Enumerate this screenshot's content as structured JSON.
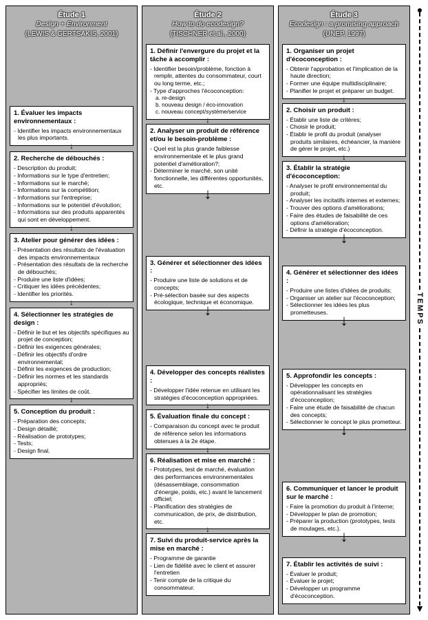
{
  "timeline_label": "TEMPS",
  "columns": [
    {
      "header": {
        "title": "Étude 1",
        "subtitle": "Design + Environment",
        "credit": "(LEWIS & GERTSAKIS, 2001)"
      },
      "top_gap": 90,
      "steps": [
        {
          "title": "1. Évaluer les impacts environnementaux :",
          "items": [
            "Identifier les impacts environnementaux les plus importants."
          ],
          "gap_after": 8
        },
        {
          "title": "2. Recherche de débouchés :",
          "items": [
            "Description du produit;",
            "Informations sur le type d'entretien;",
            "Informations sur le marché;",
            "Informations sur la compétition;",
            "Informations sur l'entreprise;",
            "Informations sur le potentiel d'évolution;",
            "Informations sur des produits apparentés qui sont en développement."
          ],
          "gap_after": 8
        },
        {
          "title": "3. Atelier pour générer des idées :",
          "items": [
            "Présentation des résultats de l'évaluation des impacts environnementaux",
            "Présentation des résultats de la recherche de débouchés;",
            "Produire une liste d'idées;",
            "Critiquer les idées précédentes;",
            "Identifier les priorités."
          ],
          "gap_after": 8
        },
        {
          "title": "4. Sélectionner les stratégies de design :",
          "items": [
            "Définir le but et les objectifs spécifiques au projet de conception;",
            "Définir les exigences générales;",
            "Définir les objectifs d'ordre environnemental;",
            "Définir les exigences de production;",
            "Définir les normes et les standards appropriés;",
            "Spécifier les limites de coût."
          ],
          "gap_after": 8
        },
        {
          "title": "5. Conception du produit :",
          "items": [
            "Préparation des concepts;",
            "Design détaillé;",
            "Réalisation de prototypes;",
            "Tests;",
            "Design final."
          ],
          "last": true,
          "gap_after": 180
        }
      ]
    },
    {
      "header": {
        "title": "Étude 2",
        "subtitle": "How to do ecodesign?",
        "credit": "(TISCHNER et al., 2000)"
      },
      "top_gap": 0,
      "steps": [
        {
          "title": "1. Définir l'envergure du projet et la tâche à accomplir :",
          "items": [
            "Identifier besoin/problème, fonction à remplir, attentes du consommateur, court ou long terme, etc.;",
            "Type d'approches l'écoconception:"
          ],
          "subitems": [
            "a. re-design",
            "b. nouveau design / éco-innovation",
            "c. nouveau concept/système/service"
          ],
          "gap_after": 6
        },
        {
          "title": "2. Analyser un produit de référence et/ou le besoin-problème :",
          "items": [
            "Quel est la plus grande faiblesse environnementale et le plus grand potentiel d'amélioration?;",
            "Déterminer le marché, son unité fonctionnelle, les différentes opportunités, etc."
          ],
          "gap_after": 90
        },
        {
          "title": "3. Générer et sélectionner des idées :",
          "items": [
            "Produire une liste de solutions et de concepts;",
            "Pré-sélection basée sur des aspects écologique, technique et économique."
          ],
          "gap_after": 80
        },
        {
          "title": "4. Développer des concepts réalistes :",
          "items": [
            "Développer l'idée retenue en utilisant les stratégies d'écoconception appropriées."
          ],
          "gap_after": 6
        },
        {
          "title": "5. Évaluation finale du concept :",
          "items": [
            "Comparaison du concept avec le produit de référence selon les informations obtenues à la 2e étape."
          ],
          "gap_after": 6
        },
        {
          "title": "6. Réalisation et mise en marché :",
          "items": [
            "Prototypes, test de marché, évaluation des performances environnementales (désassemblage, consommation d'énergie, poids, etc.) avant le lancement officiel;",
            "Planification des stratégies de communication, de prix, de distribution, etc."
          ],
          "gap_after": 6
        },
        {
          "title": "7. Suivi du produit-service après la mise en marché :",
          "items": [
            "Programme de garantie",
            "Lien de fidélité avec le client et assurer l'entretien",
            "Tenir compte de la critique du consommateur."
          ],
          "last": true
        }
      ]
    },
    {
      "header": {
        "title": "Étude 3",
        "subtitle": "Ecodesign : a promising approach",
        "credit": "(UNEP, 1997)"
      },
      "top_gap": 0,
      "steps": [
        {
          "title": "1. Organiser un projet d'écoconception :",
          "items": [
            "Obtenir l'approbation et l'implication de la haute direction;",
            "Former une équipe multidisciplinaire;",
            "Planifier le projet et préparer un budget."
          ],
          "gap_after": 6
        },
        {
          "title": "2. Choisir un produit :",
          "items": [
            "Établir une liste de critères;",
            "Choisir le produit;",
            "Établir le profil du produit (analyser produits similaires, échéancier, la manière de gérer le projet, etc.)"
          ],
          "gap_after": 6
        },
        {
          "title": "3. Établir la stratégie d'écoconception:",
          "items": [
            "Analyser le profil environnemental du produit;",
            "Analyser les incitatifs internes et externes;",
            "Trouver des options d'améliorations;",
            "Faire des études de faisabilité de ces options d'amélioration;",
            "Définir la stratégie d'écoconception."
          ],
          "gap_after": 40
        },
        {
          "title": "4. Générer et sélectionner des idées :",
          "items": [
            "Produire une listes d'idées de produits;",
            "Organiser un atelier sur l'écoconception;",
            "Sélectionner les idées les plus prometteuses."
          ],
          "gap_after": 70
        },
        {
          "title": "5. Approfondir les concepts :",
          "items": [
            "Développer les concepts en opérationnalisant les stratégies d'écoconception;",
            "Faire une étude de faisabilité de chacun des concepts;",
            "Sélectionner le concept le plus prometteur."
          ],
          "gap_after": 75
        },
        {
          "title": "6. Communiquer et lancer le produit sur le marché :",
          "items": [
            "Faire la promotion du produit à l'interne;",
            "Développer le plan de promotion;",
            "Préparer la production (prototypes, tests de moulages, etc.)."
          ],
          "gap_after": 30
        },
        {
          "title": "7. Établir les activités de suivi :",
          "items": [
            "Évaluer le produit;",
            "Évaluer le projet;",
            "Développer un programme d'écoconception."
          ],
          "last": true,
          "gap_after": 8
        }
      ]
    }
  ]
}
